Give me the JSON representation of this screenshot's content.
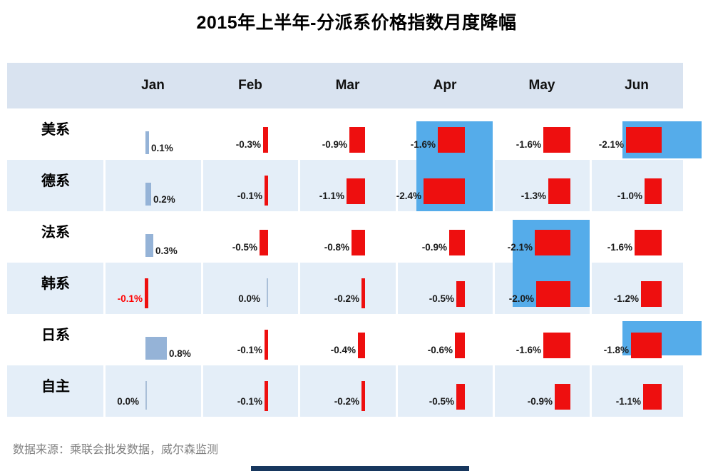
{
  "title": "2015年上半年-分派系价格指数月度降幅",
  "footer": {
    "source_note": "数据来源：乘联会批发数据，威尔森监测"
  },
  "chart_data": {
    "type": "table",
    "title": "2015年上半年-分派系价格指数月度降幅",
    "unit": "%",
    "columns": [
      "Jan",
      "Feb",
      "Mar",
      "Apr",
      "May",
      "Jun"
    ],
    "rows": [
      {
        "label": "美系",
        "values": [
          0.1,
          -0.3,
          -0.9,
          -1.6,
          -1.6,
          -2.1
        ]
      },
      {
        "label": "德系",
        "values": [
          0.2,
          -0.1,
          -1.1,
          -2.4,
          -1.3,
          -1.0
        ]
      },
      {
        "label": "法系",
        "values": [
          0.3,
          -0.5,
          -0.8,
          -0.9,
          -2.1,
          -1.6
        ]
      },
      {
        "label": "韩系",
        "values": [
          -0.1,
          0.0,
          -0.2,
          -0.5,
          -2.0,
          -1.2
        ]
      },
      {
        "label": "日系",
        "values": [
          0.8,
          -0.1,
          -0.4,
          -0.6,
          -1.6,
          -1.8
        ]
      },
      {
        "label": "自主",
        "values": [
          0.0,
          -0.1,
          -0.2,
          -0.5,
          -0.9,
          -1.1
        ]
      }
    ],
    "highlights": [
      {
        "month": "Apr",
        "rows": [
          "美系",
          "德系"
        ]
      },
      {
        "month": "May",
        "rows": [
          "法系",
          "韩系"
        ]
      },
      {
        "month": "Jun",
        "rows": [
          "美系"
        ]
      },
      {
        "month": "Jun",
        "rows": [
          "日系"
        ]
      }
    ],
    "special_text_color_cells": [
      {
        "row": "韩系",
        "month": "Jan",
        "color": "#FF0000"
      }
    ],
    "legend_position": "none",
    "grid": false
  },
  "colors": {
    "negative_bar": "#EE0F0F",
    "positive_bar": "#95B3D7",
    "zero_line": "#A9BFD8",
    "highlight": "#55ACEA",
    "header_bg": "#D9E3F0",
    "alt_row_bg": "#E4EEF8",
    "title_text": "#000000",
    "value_text": "#1A1A1A",
    "source_text": "#808080",
    "accent_bottom_bar": "#17375E"
  }
}
